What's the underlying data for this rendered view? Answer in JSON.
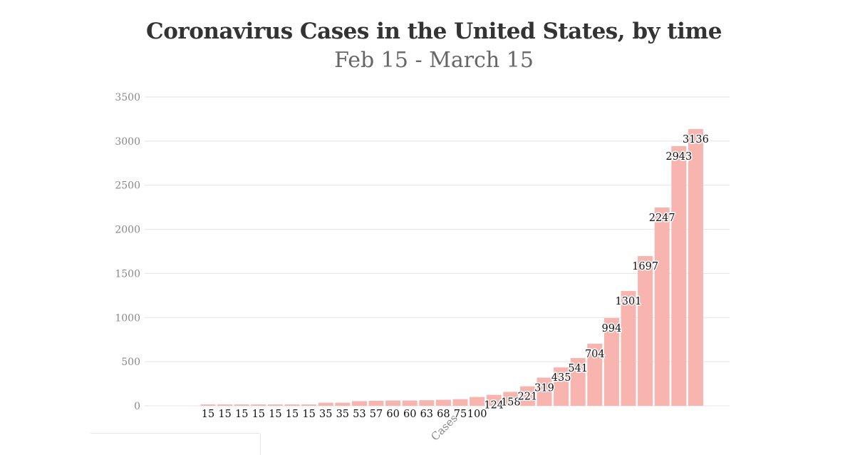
{
  "title": "Coronavirus Cases in the United States, by time",
  "subtitle": "Feb 15 - March 15",
  "colors": {
    "bar": "#f8b4ae",
    "grid": "#e3e3e3",
    "tick": "#888888",
    "label": "#111111"
  },
  "chart_data": {
    "type": "bar",
    "title": "Coronavirus Cases in the United States, by time",
    "subtitle": "Feb 15 - March 15",
    "xlabel": "Cases",
    "ylabel": "",
    "ylim": [
      0,
      3500
    ],
    "yticks": [
      0,
      500,
      1000,
      1500,
      2000,
      2500,
      3000,
      3500
    ],
    "grid": true,
    "series": [
      {
        "name": "Cases",
        "values": [
          15,
          15,
          15,
          15,
          15,
          15,
          15,
          35,
          35,
          53,
          57,
          60,
          60,
          63,
          68,
          75,
          100,
          124,
          158,
          221,
          319,
          435,
          541,
          704,
          994,
          1301,
          1697,
          2247,
          2943,
          3136
        ]
      }
    ]
  }
}
